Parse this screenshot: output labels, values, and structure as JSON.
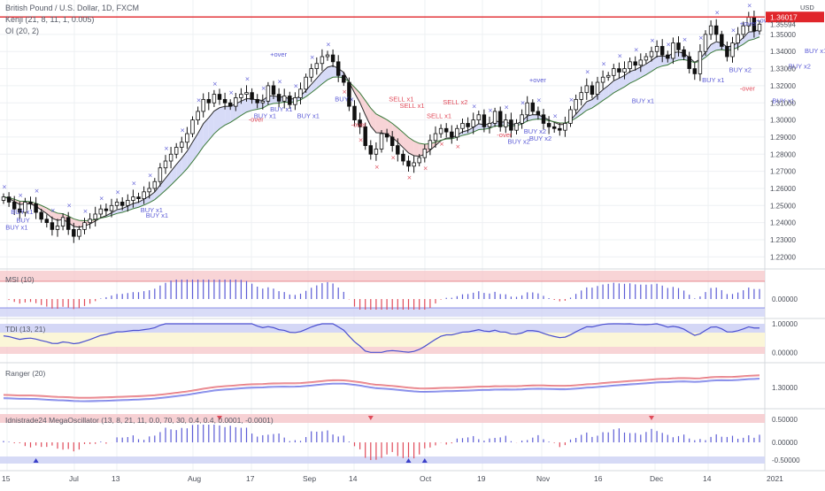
{
  "header": {
    "title": "British Pound / U.S. Dollar, 1D, FXCM",
    "kenji": "Kenji (21, 8, 11, 1, 0.005)",
    "oi": "OI (20, 2)"
  },
  "pane_labels": {
    "msi": "MSI (10)",
    "tdi": "TDI (13, 21)",
    "ranger": "Ranger (20)",
    "mega": "Idnistrade24 MegaOscillator (13, 8, 21, 11, 0.0, 70, 30, 0.4, 0.4, 0.0001, -0.0001)"
  },
  "colors": {
    "bull": "#000000",
    "bear": "#000000",
    "current_price": "#e0262b",
    "buy": "#5b5bd6",
    "sell": "#e04b5a",
    "band_red": "#f6c9cc",
    "band_blue": "#cfd3f5",
    "band_yellow": "#fbf6d8",
    "grid": "#eef0f3"
  },
  "chart_data": [
    {
      "type": "candlestick",
      "title": "British Pound / U.S. Dollar, 1D, FXCM",
      "ylabel": "USD",
      "ylim": [
        1.215,
        1.367
      ],
      "y_ticks": [
        "1.35000",
        "1.34000",
        "1.33000",
        "1.32000",
        "1.31000",
        "1.30000",
        "1.29000",
        "1.28000",
        "1.27000",
        "1.26000",
        "1.25000",
        "1.24000",
        "1.23000",
        "1.22000"
      ],
      "x_ticks": [
        "15",
        "Jul",
        "13",
        "Aug",
        "17",
        "Sep",
        "14",
        "Oct",
        "19",
        "Nov",
        "16",
        "Dec",
        "14",
        "2021"
      ],
      "current_price": 1.36017,
      "current_price_label": "1.36017",
      "secondary_price_label": "1.35594",
      "close_series_approx": [
        1.255,
        1.252,
        1.248,
        1.246,
        1.252,
        1.251,
        1.246,
        1.242,
        1.24,
        1.236,
        1.238,
        1.243,
        1.236,
        1.232,
        1.236,
        1.24,
        1.242,
        1.245,
        1.248,
        1.247,
        1.25,
        1.252,
        1.25,
        1.253,
        1.255,
        1.254,
        1.258,
        1.26,
        1.264,
        1.272,
        1.276,
        1.28,
        1.284,
        1.287,
        1.292,
        1.3,
        1.305,
        1.312,
        1.31,
        1.315,
        1.312,
        1.31,
        1.308,
        1.313,
        1.315,
        1.316,
        1.312,
        1.31,
        1.311,
        1.32,
        1.315,
        1.311,
        1.314,
        1.309,
        1.313,
        1.318,
        1.325,
        1.33,
        1.333,
        1.337,
        1.338,
        1.334,
        1.326,
        1.322,
        1.308,
        1.3,
        1.296,
        1.285,
        1.28,
        1.283,
        1.292,
        1.29,
        1.285,
        1.28,
        1.276,
        1.273,
        1.275,
        1.278,
        1.283,
        1.288,
        1.292,
        1.295,
        1.293,
        1.29,
        1.295,
        1.298,
        1.296,
        1.3,
        1.303,
        1.296,
        1.298,
        1.305,
        1.296,
        1.3,
        1.294,
        1.298,
        1.303,
        1.31,
        1.305,
        1.303,
        1.298,
        1.296,
        1.295,
        1.294,
        1.298,
        1.306,
        1.312,
        1.316,
        1.32,
        1.315,
        1.322,
        1.325,
        1.326,
        1.33,
        1.328,
        1.33,
        1.334,
        1.332,
        1.335,
        1.337,
        1.34,
        1.343,
        1.338,
        1.336,
        1.345,
        1.341,
        1.337,
        1.33,
        1.327,
        1.34,
        1.35,
        1.355,
        1.35,
        1.343,
        1.337,
        1.345,
        1.35,
        1.355,
        1.36,
        1.352,
        1.356
      ]
    }
  ],
  "y_tick_labels_main": [
    "1.35000",
    "1.34000",
    "1.33000",
    "1.32000",
    "1.31000",
    "1.30000",
    "1.29000",
    "1.28000",
    "1.27000",
    "1.26000",
    "1.25000",
    "1.24000",
    "1.23000",
    "1.22000"
  ],
  "y_tick_labels_msi": [
    "0.00000"
  ],
  "y_tick_labels_tdi": [
    "1.00000",
    "0.00000"
  ],
  "y_tick_labels_ranger": [
    "1.30000"
  ],
  "y_tick_labels_mega": [
    "0.50000",
    "0.00000",
    "-0.50000"
  ],
  "x_tick_labels": [
    "15",
    "Jul",
    "13",
    "Aug",
    "17",
    "Sep",
    "14",
    "Oct",
    "19",
    "Nov",
    "16",
    "Dec",
    "14",
    "2021"
  ],
  "price_tags": {
    "current": "1.36017",
    "secondary": "1.35594",
    "currency": "USD"
  },
  "annotations": [
    {
      "text": "BUY x1",
      "color": "buy",
      "x_day": 2,
      "y": 1.236
    },
    {
      "text": "BUY",
      "color": "buy",
      "x_day": 4,
      "y": 1.24
    },
    {
      "text": "BUY x1",
      "color": "buy",
      "x_day": 3,
      "y": 1.245
    },
    {
      "text": "BUY x1",
      "color": "buy",
      "x_day": 27,
      "y": 1.246
    },
    {
      "text": "BUY x1",
      "color": "buy",
      "x_day": 28,
      "y": 1.243
    },
    {
      "text": "BUY x1",
      "color": "buy",
      "x_day": 48,
      "y": 1.301
    },
    {
      "text": "BUY x1",
      "color": "buy",
      "x_day": 51,
      "y": 1.305
    },
    {
      "text": "BUY x1",
      "color": "buy",
      "x_day": 56,
      "y": 1.301
    },
    {
      "text": "BUY x",
      "color": "buy",
      "x_day": 63,
      "y": 1.311
    },
    {
      "text": "+over",
      "color": "buy",
      "x_day": 51,
      "y": 1.337
    },
    {
      "text": "-over",
      "color": "sell",
      "x_day": 47,
      "y": 1.299
    },
    {
      "text": "-over",
      "color": "sell",
      "x_day": 66,
      "y": 1.296
    },
    {
      "text": "SELL x1",
      "color": "sell",
      "x_day": 73,
      "y": 1.311
    },
    {
      "text": "SELL x1",
      "color": "sell",
      "x_day": 75,
      "y": 1.307
    },
    {
      "text": "SELL x2",
      "color": "sell",
      "x_day": 83,
      "y": 1.309
    },
    {
      "text": "SELL x1",
      "color": "sell",
      "x_day": 80,
      "y": 1.301
    },
    {
      "text": "+over",
      "color": "buy",
      "x_day": 99,
      "y": 1.322
    },
    {
      "text": "-over",
      "color": "sell",
      "x_day": 93,
      "y": 1.29
    },
    {
      "text": "BUY x2",
      "color": "buy",
      "x_day": 95,
      "y": 1.286
    },
    {
      "text": "BUY x2",
      "color": "buy",
      "x_day": 99,
      "y": 1.288
    },
    {
      "text": "BUY x2",
      "color": "buy",
      "x_day": 98,
      "y": 1.292
    },
    {
      "text": "BUY x1",
      "color": "buy",
      "x_day": 118,
      "y": 1.31
    },
    {
      "text": "BUY x1",
      "color": "buy",
      "x_day": 131,
      "y": 1.322
    },
    {
      "text": "BUY x2",
      "color": "buy",
      "x_day": 136,
      "y": 1.328
    },
    {
      "text": "-over",
      "color": "sell",
      "x_day": 138,
      "y": 1.317
    },
    {
      "text": "BUY x1",
      "color": "buy",
      "x_day": 144,
      "y": 1.31
    },
    {
      "text": "BUY x2",
      "color": "buy",
      "x_day": 147,
      "y": 1.33
    },
    {
      "text": "BUY x1",
      "color": "buy",
      "x_day": 150,
      "y": 1.339
    },
    {
      "text": "+over",
      "color": "buy",
      "x_day": 141,
      "y": 1.357
    },
    {
      "text": "+over",
      "color": "buy",
      "x_day": 138,
      "y": 1.355
    }
  ]
}
